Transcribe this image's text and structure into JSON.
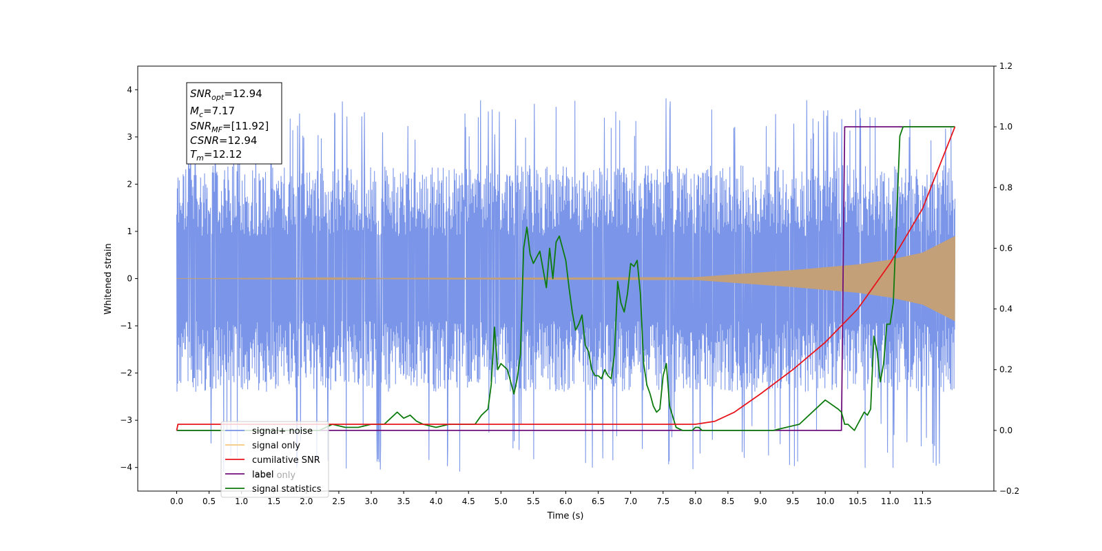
{
  "chart_data": {
    "type": "line",
    "title": "",
    "xlabel": "Time (s)",
    "ylabel": "Whitened strain",
    "xlim": [
      -0.6,
      12.6
    ],
    "ylim_left": [
      -4.5,
      4.5
    ],
    "ylim_right": [
      -0.2,
      1.2
    ],
    "x_ticks": [
      0.0,
      0.5,
      1.0,
      1.5,
      2.0,
      2.5,
      3.0,
      3.5,
      4.0,
      4.5,
      5.0,
      5.5,
      6.0,
      6.5,
      7.0,
      7.5,
      8.0,
      8.5,
      9.0,
      9.5,
      10.0,
      10.5,
      11.0,
      11.5
    ],
    "x_tick_labels": [
      "0.0",
      "0.5",
      "1.0",
      "1.5",
      "2.0",
      "2.5",
      "3.0",
      "3.5",
      "4.0",
      "4.5",
      "5.0",
      "5.5",
      "6.0",
      "6.5",
      "7.0",
      "7.5",
      "8.0",
      "8.5",
      "9.0",
      "9.5",
      "10.0",
      "10.5",
      "11.0",
      "11.5"
    ],
    "y_left_ticks": [
      -4,
      -3,
      -2,
      -1,
      0,
      1,
      2,
      3,
      4
    ],
    "y_left_tick_labels": [
      "−4",
      "−3",
      "−2",
      "−1",
      "0",
      "1",
      "2",
      "3",
      "4"
    ],
    "y_right_ticks": [
      -0.2,
      0.0,
      0.2,
      0.4,
      0.6,
      0.8,
      1.0,
      1.2
    ],
    "y_right_tick_labels": [
      "−0.2",
      "0.0",
      "0.2",
      "0.4",
      "0.6",
      "0.8",
      "1.0",
      "1.2"
    ],
    "grid": false,
    "legend_position": "lower-left",
    "info_box": [
      "SNR_opt=12.94",
      "M_c=7.17",
      "SNR_MF=[11.92]",
      "CSNR=12.94",
      "T_m=12.12"
    ],
    "series": [
      {
        "name": "signal+ noise",
        "axis": "left",
        "color": "#7b96e8",
        "description_values": {
          "x_start": 0.0,
          "x_end": 12.0,
          "typical_min": -2.2,
          "typical_max": 2.7,
          "extreme_min": -4.1,
          "extreme_max": 3.9
        }
      },
      {
        "name": "signal only",
        "axis": "left",
        "color": "#f5b44a",
        "envelope": {
          "x": [
            0.0,
            8.0,
            8.5,
            9.0,
            9.5,
            10.0,
            10.5,
            11.0,
            11.5,
            12.0
          ],
          "amp": [
            0.0,
            0.03,
            0.08,
            0.13,
            0.18,
            0.24,
            0.3,
            0.4,
            0.55,
            0.9
          ]
        }
      },
      {
        "name": "cumilative SNR",
        "axis": "right",
        "color": "#e8141c",
        "x": [
          0.0,
          0.02,
          8.0,
          8.3,
          8.6,
          9.0,
          9.5,
          10.0,
          10.5,
          11.0,
          11.5,
          12.0
        ],
        "y": [
          0.0,
          0.02,
          0.02,
          0.03,
          0.06,
          0.12,
          0.2,
          0.29,
          0.4,
          0.55,
          0.73,
          1.0
        ]
      },
      {
        "name": "label",
        "axis": "right",
        "color": "#6e0f7c",
        "x": [
          0.0,
          10.25,
          10.3,
          12.0
        ],
        "y": [
          0.0,
          0.0,
          1.0,
          1.0
        ]
      },
      {
        "name": "signal statistics",
        "axis": "right",
        "color": "#0c7a0c",
        "x": [
          0.0,
          2.2,
          2.4,
          2.6,
          2.8,
          3.0,
          3.2,
          3.3,
          3.4,
          3.5,
          3.6,
          3.7,
          3.8,
          4.0,
          4.2,
          4.4,
          4.6,
          4.7,
          4.8,
          4.85,
          4.9,
          4.95,
          5.0,
          5.1,
          5.2,
          5.25,
          5.3,
          5.35,
          5.4,
          5.45,
          5.5,
          5.55,
          5.6,
          5.7,
          5.75,
          5.8,
          5.85,
          5.9,
          5.95,
          6.0,
          6.05,
          6.1,
          6.15,
          6.2,
          6.25,
          6.3,
          6.35,
          6.4,
          6.45,
          6.5,
          6.55,
          6.6,
          6.65,
          6.7,
          6.75,
          6.8,
          6.85,
          6.9,
          6.95,
          7.0,
          7.05,
          7.1,
          7.15,
          7.2,
          7.25,
          7.3,
          7.35,
          7.4,
          7.45,
          7.5,
          7.55,
          7.6,
          7.7,
          7.8,
          7.9,
          7.95,
          8.0,
          8.05,
          8.1,
          8.2,
          8.4,
          8.8,
          9.2,
          9.6,
          10.0,
          10.2,
          10.25,
          10.3,
          10.35,
          10.4,
          10.45,
          10.5,
          10.55,
          10.6,
          10.65,
          10.7,
          10.75,
          10.8,
          10.85,
          10.9,
          10.95,
          11.0,
          11.05,
          11.1,
          11.15,
          11.2,
          11.25,
          11.3,
          11.35,
          11.4,
          11.45,
          11.5,
          11.55,
          11.6,
          11.7,
          11.8,
          12.0
        ],
        "y": [
          0.0,
          0.0,
          0.02,
          0.01,
          0.01,
          0.02,
          0.02,
          0.04,
          0.06,
          0.04,
          0.05,
          0.03,
          0.02,
          0.01,
          0.02,
          0.02,
          0.02,
          0.05,
          0.07,
          0.15,
          0.34,
          0.2,
          0.22,
          0.2,
          0.12,
          0.17,
          0.25,
          0.6,
          0.67,
          0.58,
          0.55,
          0.57,
          0.59,
          0.47,
          0.6,
          0.5,
          0.62,
          0.64,
          0.6,
          0.56,
          0.47,
          0.39,
          0.33,
          0.35,
          0.38,
          0.28,
          0.26,
          0.2,
          0.18,
          0.18,
          0.17,
          0.2,
          0.18,
          0.17,
          0.25,
          0.49,
          0.42,
          0.39,
          0.45,
          0.55,
          0.54,
          0.56,
          0.45,
          0.22,
          0.15,
          0.12,
          0.08,
          0.06,
          0.07,
          0.18,
          0.22,
          0.08,
          0.01,
          0.0,
          0.0,
          0.0,
          0.01,
          0.01,
          0.0,
          0.0,
          0.0,
          0.0,
          0.0,
          0.02,
          0.1,
          0.07,
          0.06,
          0.02,
          0.02,
          0.01,
          0.0,
          0.02,
          0.04,
          0.06,
          0.05,
          0.07,
          0.31,
          0.26,
          0.16,
          0.22,
          0.35,
          0.35,
          0.42,
          0.7,
          0.97,
          1.0,
          1.0,
          1.0,
          1.0,
          1.0,
          1.0,
          1.0,
          1.0,
          1.0,
          1.0,
          1.0,
          1.0
        ]
      },
      {
        "name": "label only",
        "axis": "right",
        "color": "#6e0f7c",
        "legend_only": true
      }
    ],
    "legend_entries": [
      "signal+ noise",
      "signal only",
      "cumilative SNR",
      "label",
      "signal statistics"
    ],
    "legend_obscured_entry": "label only"
  }
}
